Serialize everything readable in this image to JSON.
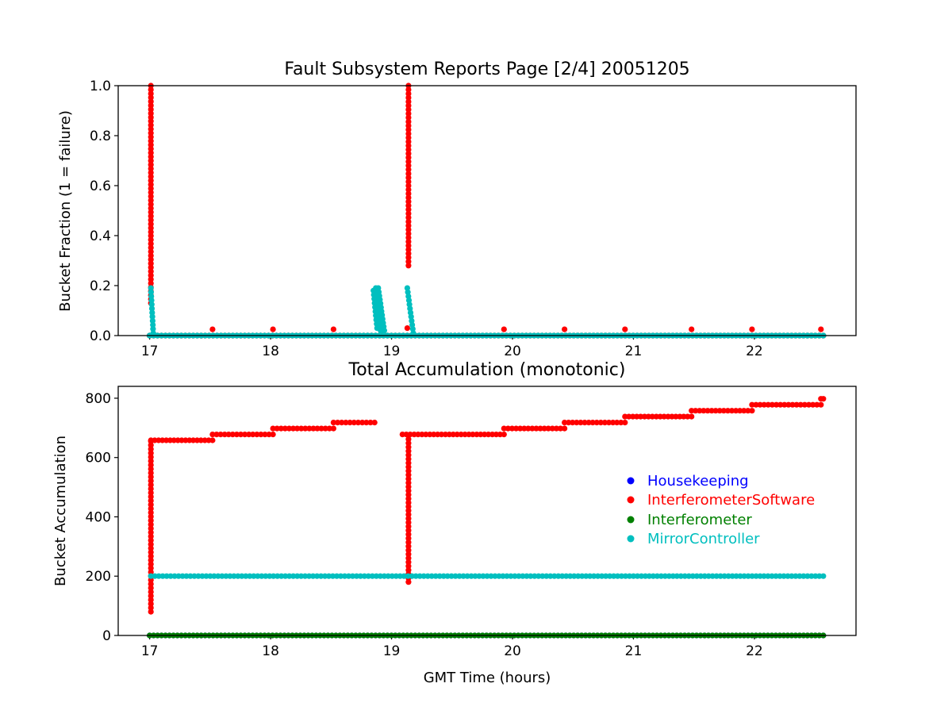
{
  "chart_data": [
    {
      "type": "scatter",
      "title": "Fault Subsystem Reports Page [2/4] 20051205",
      "xlabel": "",
      "ylabel": "Bucket Fraction (1 = failure)",
      "xlim": [
        16.74,
        22.84
      ],
      "ylim": [
        0,
        1
      ],
      "xticks": [
        "17",
        "18",
        "19",
        "20",
        "21",
        "22"
      ],
      "yticks": [
        "0.0",
        "0.2",
        "0.4",
        "0.6",
        "0.8",
        "1.0"
      ],
      "grid": false,
      "series": [
        {
          "name": "Housekeeping",
          "color": "#0000ff",
          "segments": [
            {
              "from": [
                17.0,
                0.0
              ],
              "to": [
                22.57,
                0.0
              ]
            }
          ],
          "points": []
        },
        {
          "name": "InterferometerSoftware",
          "color": "#ff0000",
          "segments": [
            {
              "from": [
                17.0,
                0.0
              ],
              "to": [
                22.57,
                0.0
              ]
            },
            {
              "from": [
                17.01,
                0.13
              ],
              "to": [
                17.01,
                1.0
              ]
            },
            {
              "from": [
                19.14,
                0.28
              ],
              "to": [
                19.14,
                1.0
              ]
            }
          ],
          "points": [
            [
              17.52,
              0.025
            ],
            [
              18.02,
              0.025
            ],
            [
              18.52,
              0.025
            ],
            [
              19.13,
              0.03
            ],
            [
              19.93,
              0.025
            ],
            [
              20.43,
              0.025
            ],
            [
              20.93,
              0.025
            ],
            [
              21.48,
              0.025
            ],
            [
              21.98,
              0.025
            ],
            [
              22.55,
              0.025
            ]
          ]
        },
        {
          "name": "Interferometer",
          "color": "#008000",
          "segments": [
            {
              "from": [
                17.0,
                0.0
              ],
              "to": [
                22.57,
                0.0
              ]
            }
          ],
          "points": []
        },
        {
          "name": "MirrorController",
          "color": "#00bfbf",
          "segments": [
            {
              "from": [
                17.0,
                0.0
              ],
              "to": [
                22.57,
                0.0
              ]
            },
            {
              "from": [
                17.01,
                0.19
              ],
              "to": [
                17.03,
                0.01
              ]
            },
            {
              "from": [
                18.85,
                0.18
              ],
              "to": [
                18.88,
                0.03
              ]
            },
            {
              "from": [
                18.87,
                0.19
              ],
              "to": [
                18.91,
                0.02
              ]
            },
            {
              "from": [
                18.89,
                0.19
              ],
              "to": [
                18.94,
                0.02
              ]
            },
            {
              "from": [
                19.13,
                0.19
              ],
              "to": [
                19.18,
                0.01
              ]
            }
          ],
          "points": []
        }
      ]
    },
    {
      "type": "scatter",
      "title": "Total Accumulation (monotonic)",
      "xlabel": "GMT Time (hours)",
      "ylabel": "Bucket Accumulation",
      "xlim": [
        16.74,
        22.84
      ],
      "ylim": [
        0,
        840
      ],
      "xticks": [
        "17",
        "18",
        "19",
        "20",
        "21",
        "22"
      ],
      "yticks": [
        "0",
        "200",
        "400",
        "600",
        "800"
      ],
      "grid": false,
      "legend_position": "center-right",
      "series": [
        {
          "name": "Housekeeping",
          "color": "#0000ff",
          "segments": [
            {
              "from": [
                17.0,
                0
              ],
              "to": [
                22.57,
                0
              ]
            }
          ],
          "points": []
        },
        {
          "name": "InterferometerSoftware",
          "color": "#ff0000",
          "segments": [
            {
              "from": [
                17.01,
                80
              ],
              "to": [
                17.01,
                655
              ]
            },
            {
              "from": [
                17.01,
                658
              ],
              "to": [
                17.52,
                658
              ]
            },
            {
              "from": [
                17.52,
                678
              ],
              "to": [
                18.02,
                678
              ]
            },
            {
              "from": [
                18.02,
                698
              ],
              "to": [
                18.52,
                698
              ]
            },
            {
              "from": [
                18.52,
                718
              ],
              "to": [
                18.86,
                718
              ]
            },
            {
              "from": [
                19.14,
                180
              ],
              "to": [
                19.14,
                675
              ]
            },
            {
              "from": [
                19.09,
                678
              ],
              "to": [
                19.93,
                678
              ]
            },
            {
              "from": [
                19.93,
                698
              ],
              "to": [
                20.43,
                698
              ]
            },
            {
              "from": [
                20.43,
                718
              ],
              "to": [
                20.93,
                718
              ]
            },
            {
              "from": [
                20.93,
                738
              ],
              "to": [
                21.48,
                738
              ]
            },
            {
              "from": [
                21.48,
                758
              ],
              "to": [
                21.98,
                758
              ]
            },
            {
              "from": [
                21.98,
                778
              ],
              "to": [
                22.55,
                778
              ]
            },
            {
              "from": [
                22.55,
                798
              ],
              "to": [
                22.57,
                798
              ]
            }
          ],
          "points": []
        },
        {
          "name": "Interferometer",
          "color": "#008000",
          "segments": [
            {
              "from": [
                17.0,
                0
              ],
              "to": [
                22.57,
                0
              ]
            }
          ],
          "points": []
        },
        {
          "name": "MirrorController",
          "color": "#00bfbf",
          "segments": [
            {
              "from": [
                17.01,
                200
              ],
              "to": [
                22.57,
                200
              ]
            }
          ],
          "points": []
        }
      ]
    }
  ]
}
